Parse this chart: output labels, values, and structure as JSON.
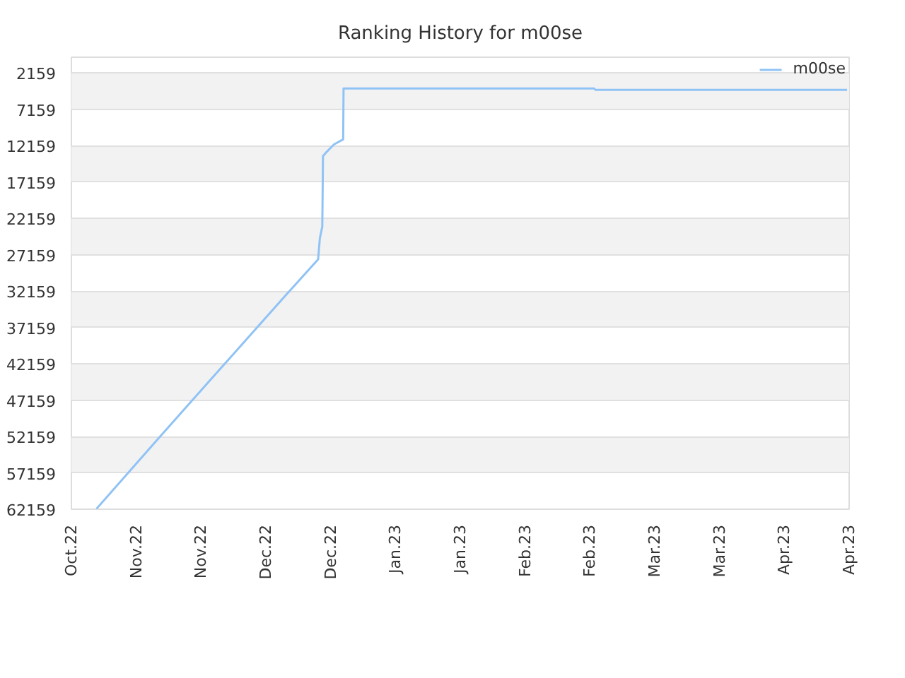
{
  "chart_data": {
    "type": "line",
    "title": "Ranking History for m00se",
    "x": [
      "2022-10-26",
      "2022-11-10",
      "2022-11-25",
      "2022-12-10",
      "2022-12-18",
      "2022-12-18T10:00",
      "2022-12-19",
      "2022-12-19T04:00",
      "2022-12-20T02:00",
      "2022-12-21T19:00",
      "2022-12-24",
      "2022-12-24T02:00",
      "2023-02-22",
      "2023-02-22T08:00",
      "2023-04-23T12:00"
    ],
    "series": [
      {
        "name": "m00se",
        "color": "#90c3f5",
        "values": [
          62100,
          52300,
          42600,
          32900,
          27800,
          24900,
          23300,
          13600,
          13000,
          12000,
          11300,
          4300,
          4300,
          4500,
          4500
        ]
      }
    ],
    "xlim": [
      "2022-10-20",
      "2023-04-24"
    ],
    "xticks": [
      {
        "value": "2022-10-20",
        "label": "Oct.22"
      },
      {
        "value": "2022-11-04T12:00",
        "label": "Nov.22"
      },
      {
        "value": "2022-11-20",
        "label": "Nov.22"
      },
      {
        "value": "2022-12-05T12:00",
        "label": "Dec.22"
      },
      {
        "value": "2022-12-21",
        "label": "Dec.22"
      },
      {
        "value": "2023-01-05T12:00",
        "label": "Jan.23"
      },
      {
        "value": "2023-01-21",
        "label": "Jan.23"
      },
      {
        "value": "2023-02-05T12:00",
        "label": "Feb.23"
      },
      {
        "value": "2023-02-21",
        "label": "Feb.23"
      },
      {
        "value": "2023-03-08T12:00",
        "label": "Mar.23"
      },
      {
        "value": "2023-03-24",
        "label": "Mar.23"
      },
      {
        "value": "2023-04-08T12:00",
        "label": "Apr.23"
      },
      {
        "value": "2023-04-24",
        "label": "Apr.23"
      }
    ],
    "ylim": [
      62159,
      1
    ],
    "yticks": [
      2159,
      7159,
      12159,
      17159,
      22159,
      27159,
      32159,
      37159,
      42159,
      47159,
      52159,
      57159,
      62159
    ],
    "grid": "y",
    "legend": "top right",
    "line_style": "solid"
  }
}
